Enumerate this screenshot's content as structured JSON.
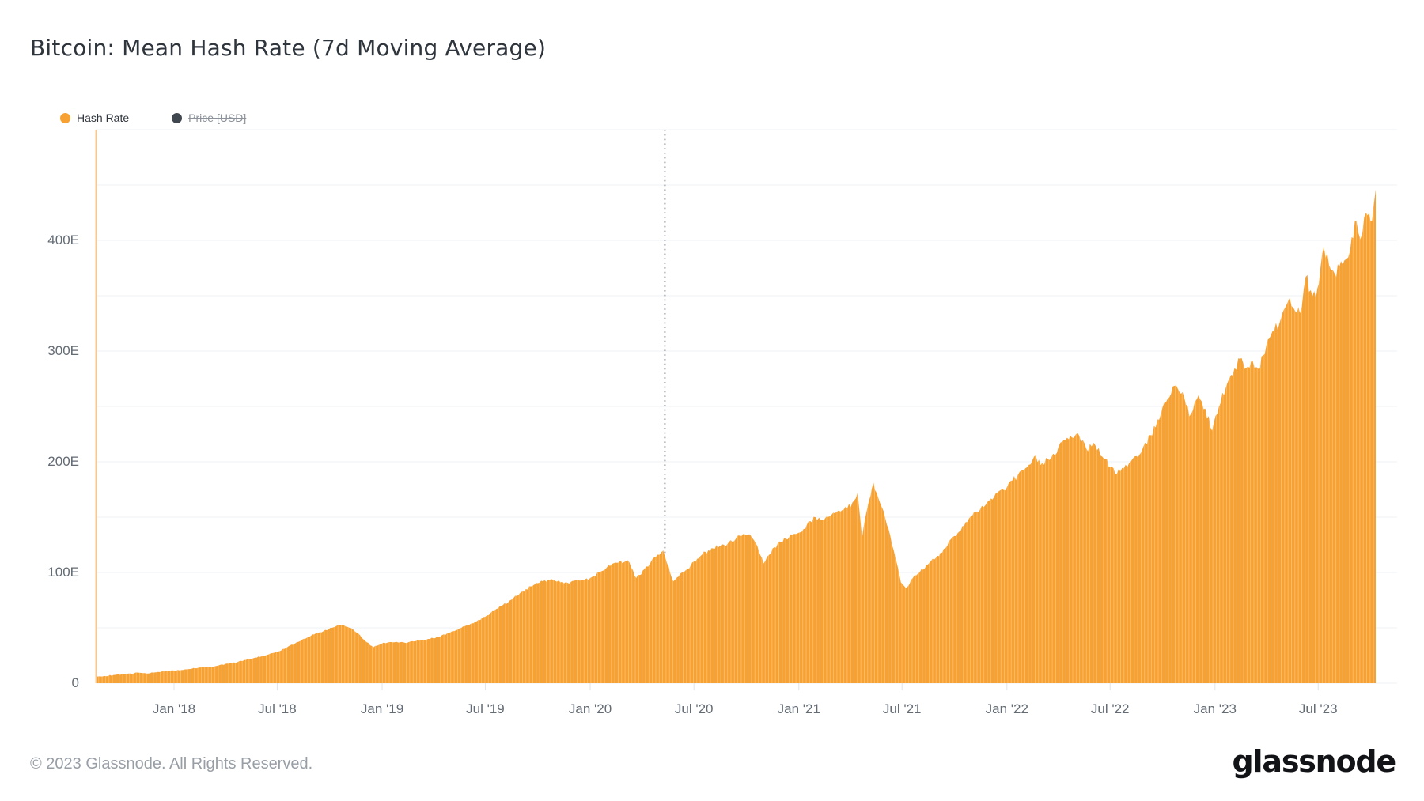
{
  "header": {
    "title": "Bitcoin: Mean Hash Rate (7d Moving Average)"
  },
  "legend": {
    "items": [
      {
        "label": "Hash Rate",
        "color": "#f6a132",
        "enabled": true
      },
      {
        "label": "Price [USD]",
        "color": "#41474e",
        "enabled": false
      }
    ]
  },
  "footer": {
    "copyright": "© 2023 Glassnode. All Rights Reserved.",
    "brand": "glassnode"
  },
  "chart_data": {
    "type": "area",
    "title": "Bitcoin: Mean Hash Rate (7d Moving Average)",
    "ylabel": "",
    "xlabel": "",
    "y_unit_suffix": "E",
    "ylim": [
      0,
      500
    ],
    "grid": "horizontal every 50E",
    "legend_position": "top-left",
    "colors": {
      "area": "#f6a132",
      "area_stripe": "#fbbc69",
      "axis_edge_line": "#f8c88f",
      "gridline": "#eef0f3",
      "tick": "#e0e4e8",
      "marker_line": "#4d5156"
    },
    "y_ticks": [
      {
        "label": "0",
        "value": 0
      },
      {
        "label": "100E",
        "value": 100
      },
      {
        "label": "200E",
        "value": 200
      },
      {
        "label": "300E",
        "value": 300
      },
      {
        "label": "400E",
        "value": 400
      }
    ],
    "x_ticks": [
      {
        "label": "Jan '18",
        "date": "2018-01-01"
      },
      {
        "label": "Jul '18",
        "date": "2018-07-01"
      },
      {
        "label": "Jan '19",
        "date": "2019-01-01"
      },
      {
        "label": "Jul '19",
        "date": "2019-07-01"
      },
      {
        "label": "Jan '20",
        "date": "2020-01-01"
      },
      {
        "label": "Jul '20",
        "date": "2020-07-01"
      },
      {
        "label": "Jan '21",
        "date": "2021-01-01"
      },
      {
        "label": "Jul '21",
        "date": "2021-07-01"
      },
      {
        "label": "Jan '22",
        "date": "2022-01-01"
      },
      {
        "label": "Jul '22",
        "date": "2022-07-01"
      },
      {
        "label": "Jan '23",
        "date": "2023-01-01"
      },
      {
        "label": "Jul '23",
        "date": "2023-07-01"
      }
    ],
    "marker_line": {
      "date": "2020-05-11",
      "style": "dotted-vertical"
    },
    "series": [
      {
        "name": "Hash Rate",
        "unit": "EH/s",
        "visible": true,
        "points": [
          [
            "2017-08-16",
            5.5
          ],
          [
            "2017-09-01",
            6.5
          ],
          [
            "2017-09-20",
            7.5
          ],
          [
            "2017-10-10",
            8.5
          ],
          [
            "2017-11-01",
            9.5
          ],
          [
            "2017-11-20",
            9
          ],
          [
            "2017-12-10",
            10.5
          ],
          [
            "2018-01-01",
            11.5
          ],
          [
            "2018-01-20",
            12.5
          ],
          [
            "2018-02-10",
            13.5
          ],
          [
            "2018-03-01",
            14.5
          ],
          [
            "2018-03-20",
            16
          ],
          [
            "2018-04-10",
            18
          ],
          [
            "2018-05-01",
            20
          ],
          [
            "2018-05-20",
            22.5
          ],
          [
            "2018-06-10",
            25
          ],
          [
            "2018-07-01",
            28
          ],
          [
            "2018-07-20",
            33
          ],
          [
            "2018-08-10",
            38
          ],
          [
            "2018-09-01",
            44
          ],
          [
            "2018-09-20",
            47
          ],
          [
            "2018-10-05",
            50
          ],
          [
            "2018-10-20",
            52.5
          ],
          [
            "2018-11-05",
            50
          ],
          [
            "2018-11-20",
            45
          ],
          [
            "2018-12-05",
            37
          ],
          [
            "2018-12-17",
            32.5
          ],
          [
            "2019-01-01",
            36
          ],
          [
            "2019-01-20",
            37
          ],
          [
            "2019-02-10",
            36.5
          ],
          [
            "2019-03-01",
            38
          ],
          [
            "2019-03-20",
            39.5
          ],
          [
            "2019-04-10",
            42
          ],
          [
            "2019-05-01",
            46
          ],
          [
            "2019-05-20",
            50
          ],
          [
            "2019-06-10",
            54
          ],
          [
            "2019-07-01",
            60
          ],
          [
            "2019-07-20",
            67
          ],
          [
            "2019-08-10",
            73
          ],
          [
            "2019-09-01",
            82
          ],
          [
            "2019-09-25",
            89
          ],
          [
            "2019-10-10",
            92
          ],
          [
            "2019-10-28",
            93
          ],
          [
            "2019-11-10",
            91
          ],
          [
            "2019-11-25",
            90
          ],
          [
            "2019-12-10",
            93
          ],
          [
            "2020-01-01",
            95
          ],
          [
            "2020-01-20",
            101
          ],
          [
            "2020-02-05",
            106
          ],
          [
            "2020-02-20",
            109
          ],
          [
            "2020-03-07",
            111
          ],
          [
            "2020-03-22",
            95
          ],
          [
            "2020-04-05",
            103
          ],
          [
            "2020-04-15",
            108
          ],
          [
            "2020-04-25",
            114
          ],
          [
            "2020-05-08",
            120
          ],
          [
            "2020-05-15",
            108
          ],
          [
            "2020-05-26",
            92
          ],
          [
            "2020-06-10",
            100
          ],
          [
            "2020-06-25",
            106
          ],
          [
            "2020-07-01",
            110
          ],
          [
            "2020-07-15",
            116
          ],
          [
            "2020-08-01",
            122
          ],
          [
            "2020-08-15",
            124
          ],
          [
            "2020-08-29",
            126
          ],
          [
            "2020-09-12",
            130
          ],
          [
            "2020-09-26",
            135
          ],
          [
            "2020-10-10",
            132
          ],
          [
            "2020-10-20",
            124
          ],
          [
            "2020-10-31",
            108
          ],
          [
            "2020-11-10",
            116
          ],
          [
            "2020-11-28",
            128
          ],
          [
            "2020-12-15",
            132
          ],
          [
            "2021-01-01",
            136
          ],
          [
            "2021-01-15",
            143
          ],
          [
            "2021-01-30",
            150
          ],
          [
            "2021-02-15",
            148
          ],
          [
            "2021-02-27",
            152
          ],
          [
            "2021-03-15",
            155
          ],
          [
            "2021-03-27",
            158
          ],
          [
            "2021-04-08",
            165
          ],
          [
            "2021-04-14",
            172
          ],
          [
            "2021-04-22",
            132
          ],
          [
            "2021-05-01",
            158
          ],
          [
            "2021-05-12",
            181
          ],
          [
            "2021-05-20",
            168
          ],
          [
            "2021-05-30",
            155
          ],
          [
            "2021-06-10",
            134
          ],
          [
            "2021-06-20",
            112
          ],
          [
            "2021-06-29",
            91
          ],
          [
            "2021-07-08",
            86
          ],
          [
            "2021-07-20",
            95
          ],
          [
            "2021-08-01",
            100
          ],
          [
            "2021-08-15",
            107
          ],
          [
            "2021-09-01",
            115
          ],
          [
            "2021-09-15",
            122
          ],
          [
            "2021-10-01",
            133
          ],
          [
            "2021-10-15",
            142
          ],
          [
            "2021-11-01",
            151
          ],
          [
            "2021-11-15",
            157
          ],
          [
            "2021-12-01",
            165
          ],
          [
            "2021-12-15",
            172
          ],
          [
            "2022-01-01",
            177
          ],
          [
            "2022-01-20",
            188
          ],
          [
            "2022-02-05",
            195
          ],
          [
            "2022-02-18",
            205
          ],
          [
            "2022-03-01",
            197
          ],
          [
            "2022-03-20",
            204
          ],
          [
            "2022-04-08",
            218
          ],
          [
            "2022-04-25",
            222
          ],
          [
            "2022-05-05",
            226
          ],
          [
            "2022-05-20",
            212
          ],
          [
            "2022-06-05",
            215
          ],
          [
            "2022-06-20",
            203
          ],
          [
            "2022-07-10",
            189
          ],
          [
            "2022-07-25",
            194
          ],
          [
            "2022-08-10",
            203
          ],
          [
            "2022-08-25",
            209
          ],
          [
            "2022-09-10",
            224
          ],
          [
            "2022-09-25",
            238
          ],
          [
            "2022-10-10",
            257
          ],
          [
            "2022-10-25",
            269
          ],
          [
            "2022-11-05",
            263
          ],
          [
            "2022-11-17",
            241
          ],
          [
            "2022-12-03",
            260
          ],
          [
            "2022-12-15",
            248
          ],
          [
            "2022-12-27",
            228
          ],
          [
            "2023-01-08",
            250
          ],
          [
            "2023-01-20",
            267
          ],
          [
            "2023-02-01",
            278
          ],
          [
            "2023-02-14",
            293
          ],
          [
            "2023-02-25",
            285
          ],
          [
            "2023-03-08",
            291
          ],
          [
            "2023-03-18",
            284
          ],
          [
            "2023-04-01",
            305
          ],
          [
            "2023-04-12",
            318
          ],
          [
            "2023-04-24",
            325
          ],
          [
            "2023-05-05",
            340
          ],
          [
            "2023-05-12",
            348
          ],
          [
            "2023-05-22",
            336
          ],
          [
            "2023-05-30",
            334
          ],
          [
            "2023-06-09",
            367
          ],
          [
            "2023-06-18",
            355
          ],
          [
            "2023-06-27",
            348
          ],
          [
            "2023-07-05",
            375
          ],
          [
            "2023-07-11",
            394
          ],
          [
            "2023-07-20",
            378
          ],
          [
            "2023-07-30",
            370
          ],
          [
            "2023-08-07",
            376
          ],
          [
            "2023-08-16",
            382
          ],
          [
            "2023-08-26",
            391
          ],
          [
            "2023-09-06",
            418
          ],
          [
            "2023-09-13",
            401
          ],
          [
            "2023-09-23",
            425
          ],
          [
            "2023-10-01",
            417
          ],
          [
            "2023-10-06",
            430
          ],
          [
            "2023-10-10",
            446
          ]
        ]
      },
      {
        "name": "Price [USD]",
        "unit": "USD",
        "visible": false,
        "points": []
      }
    ]
  }
}
